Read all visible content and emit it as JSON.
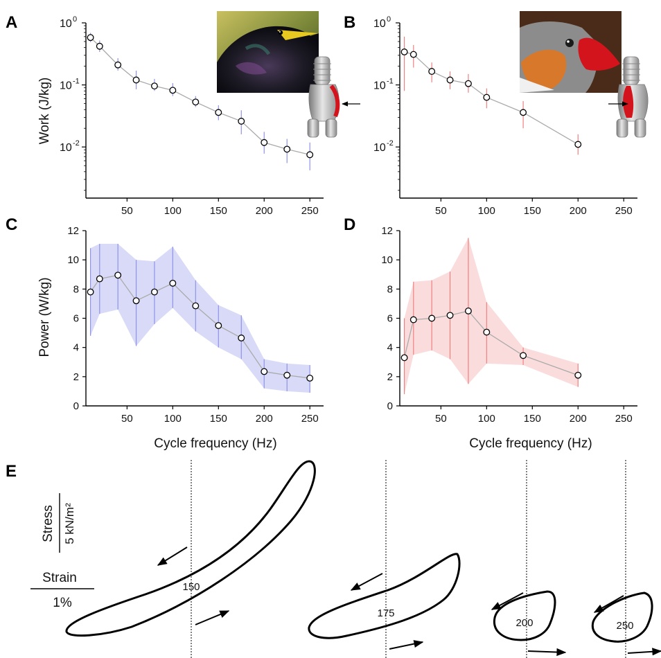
{
  "figure": {
    "panel_letters": [
      "A",
      "B",
      "C",
      "D",
      "E"
    ],
    "xlabel": "Cycle frequency (Hz)",
    "ylabel_work": "Work (J/kg)",
    "ylabel_power": "Power (W/kg)",
    "stress_label": "Stress",
    "stress_unit": "5 kN/m²",
    "strain_label": "Strain",
    "strain_unit": "1%",
    "x_ticks": [
      "50",
      "100",
      "150",
      "200",
      "250"
    ],
    "power_ticks": [
      "0",
      "2",
      "4",
      "6",
      "8",
      "10",
      "12"
    ],
    "work_tick_base": "10",
    "work_tick_exps": [
      "0",
      "-1",
      "-2"
    ],
    "colors": {
      "starling": "#8f93e6",
      "starling_band": "#d8daf7",
      "finch": "#f08080",
      "finch_band": "#fbdcdc",
      "line": "#aaaaaa",
      "syrinx_muscle": "#d4141c"
    },
    "photos": [
      "starling-photo",
      "zebra-finch-photo"
    ],
    "icons": [
      "syrinx-icon",
      "arrow-icon"
    ]
  },
  "chart_data": [
    {
      "panel": "A",
      "type": "line",
      "yscale": "log",
      "xlim": [
        5,
        265
      ],
      "ylim": [
        0.0015,
        1
      ],
      "x": [
        10,
        20,
        40,
        60,
        80,
        100,
        125,
        150,
        175,
        200,
        225,
        250
      ],
      "y": [
        0.58,
        0.42,
        0.21,
        0.12,
        0.096,
        0.082,
        0.053,
        0.036,
        0.026,
        0.0118,
        0.0092,
        0.0075
      ],
      "err_low": [
        0.49,
        0.34,
        0.17,
        0.085,
        0.08,
        0.066,
        0.044,
        0.027,
        0.016,
        0.0078,
        0.0055,
        0.0042
      ],
      "err_high": [
        0.69,
        0.52,
        0.27,
        0.17,
        0.125,
        0.107,
        0.066,
        0.047,
        0.039,
        0.0175,
        0.0135,
        0.0118
      ]
    },
    {
      "panel": "B",
      "type": "line",
      "yscale": "log",
      "xlim": [
        5,
        265
      ],
      "ylim": [
        0.0015,
        1
      ],
      "x": [
        10,
        20,
        40,
        60,
        80,
        100,
        140,
        200
      ],
      "y": [
        0.34,
        0.31,
        0.165,
        0.12,
        0.105,
        0.063,
        0.036,
        0.011
      ],
      "err_low": [
        0.08,
        0.19,
        0.11,
        0.085,
        0.075,
        0.042,
        0.02,
        0.0075
      ],
      "err_high": [
        0.6,
        0.44,
        0.23,
        0.165,
        0.15,
        0.088,
        0.055,
        0.016
      ]
    },
    {
      "panel": "C",
      "type": "line",
      "xlim": [
        5,
        265
      ],
      "ylim": [
        0,
        12
      ],
      "x": [
        10,
        20,
        40,
        60,
        80,
        100,
        125,
        150,
        175,
        200,
        225,
        250
      ],
      "y": [
        7.8,
        8.7,
        8.95,
        7.2,
        7.8,
        8.4,
        6.85,
        5.5,
        4.65,
        2.35,
        2.1,
        1.9
      ],
      "err_low": [
        4.8,
        6.3,
        6.6,
        4.1,
        5.6,
        6.7,
        5.1,
        4.0,
        3.2,
        1.2,
        1.0,
        0.9
      ],
      "err_high": [
        10.8,
        11.1,
        11.1,
        10.0,
        9.9,
        10.9,
        8.6,
        6.9,
        6.2,
        3.2,
        2.9,
        2.8
      ]
    },
    {
      "panel": "D",
      "type": "line",
      "xlim": [
        5,
        265
      ],
      "ylim": [
        0,
        12
      ],
      "x": [
        10,
        20,
        40,
        60,
        80,
        100,
        140,
        200
      ],
      "y": [
        3.3,
        5.9,
        6.0,
        6.2,
        6.5,
        5.05,
        3.45,
        2.1
      ],
      "err_low": [
        0.8,
        3.5,
        3.8,
        3.2,
        1.5,
        2.9,
        2.8,
        1.3
      ],
      "err_high": [
        6.0,
        8.5,
        8.6,
        9.2,
        11.5,
        7.1,
        4.0,
        2.9
      ]
    },
    {
      "panel": "E",
      "type": "other",
      "loops": [
        {
          "label": "150"
        },
        {
          "label": "175"
        },
        {
          "label": "200"
        },
        {
          "label": "250"
        }
      ]
    }
  ]
}
